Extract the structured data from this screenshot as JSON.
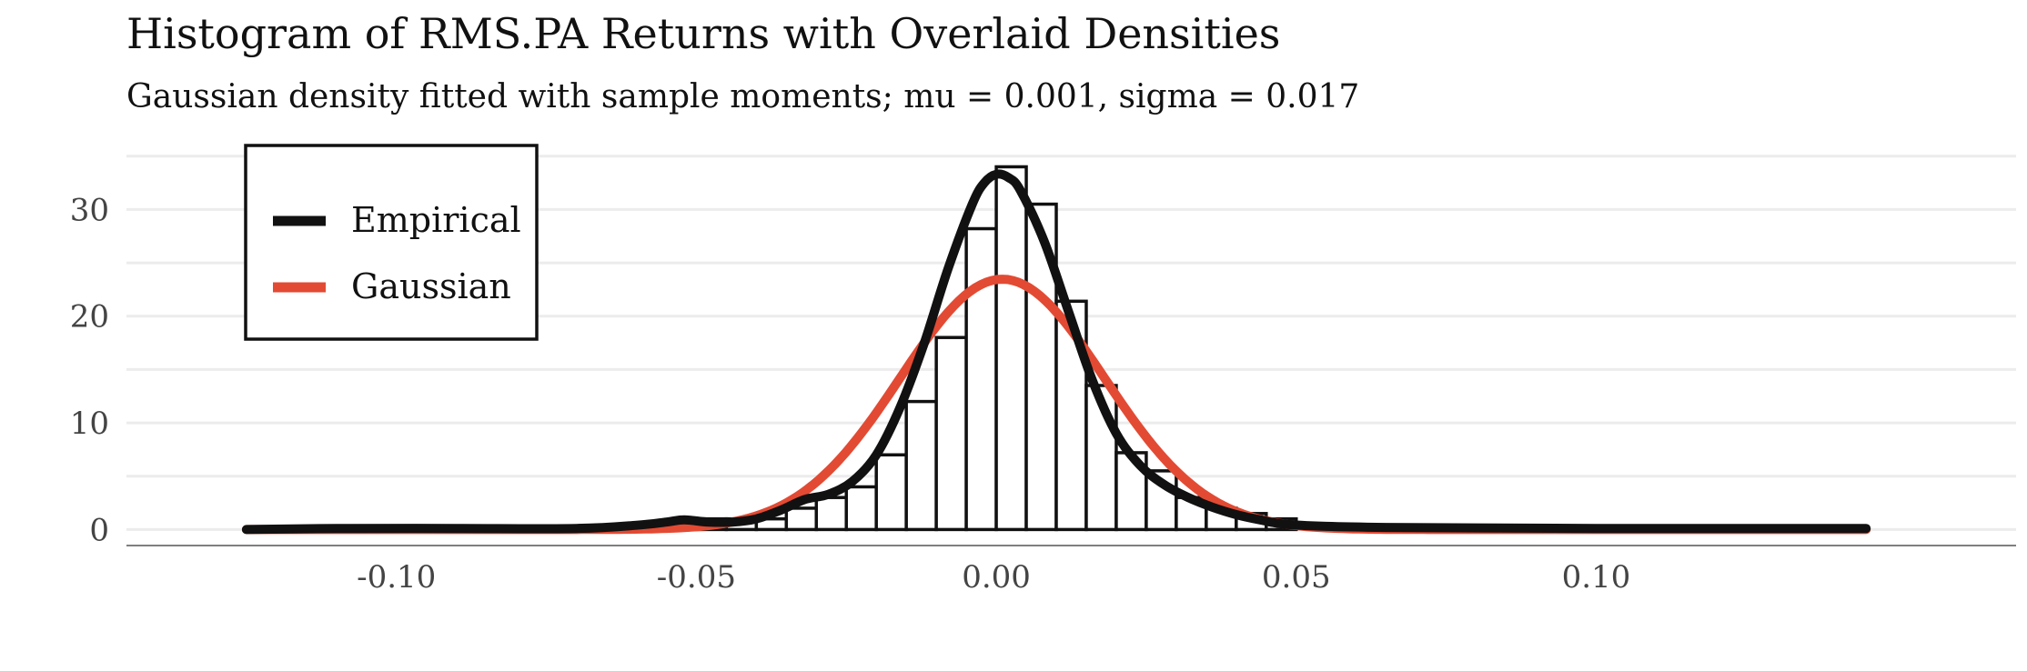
{
  "chart_data": {
    "type": "histogram",
    "title": "Histogram of RMS.PA Returns with Overlaid Densities",
    "subtitle": "Gaussian density fitted with sample moments; mu = 0.001, sigma = 0.017",
    "xlabel": "",
    "ylabel": "",
    "xlim": [
      -0.145,
      0.17
    ],
    "ylim": [
      -1.5,
      36
    ],
    "x_ticks": [
      -0.1,
      -0.05,
      0.0,
      0.05,
      0.1
    ],
    "x_tick_labels": [
      "-0.10",
      "-0.05",
      "0.00",
      "0.05",
      "0.10"
    ],
    "y_ticks": [
      0,
      10,
      20,
      30
    ],
    "y_tick_labels": [
      "0",
      "10",
      "20",
      "30"
    ],
    "grid": "horizontal",
    "bin_width": 0.005,
    "bins": [
      {
        "x0": -0.05,
        "x1": -0.045,
        "density": 1
      },
      {
        "x0": -0.045,
        "x1": -0.04,
        "density": 1
      },
      {
        "x0": -0.04,
        "x1": -0.035,
        "density": 1
      },
      {
        "x0": -0.035,
        "x1": -0.03,
        "density": 2
      },
      {
        "x0": -0.03,
        "x1": -0.025,
        "density": 3
      },
      {
        "x0": -0.025,
        "x1": -0.02,
        "density": 4
      },
      {
        "x0": -0.02,
        "x1": -0.015,
        "density": 7
      },
      {
        "x0": -0.015,
        "x1": -0.01,
        "density": 12
      },
      {
        "x0": -0.01,
        "x1": -0.005,
        "density": 18
      },
      {
        "x0": -0.005,
        "x1": 0.0,
        "density": 28.2
      },
      {
        "x0": 0.0,
        "x1": 0.005,
        "density": 34
      },
      {
        "x0": 0.005,
        "x1": 0.01,
        "density": 30.5
      },
      {
        "x0": 0.01,
        "x1": 0.015,
        "density": 21.4
      },
      {
        "x0": 0.015,
        "x1": 0.02,
        "density": 13.5
      },
      {
        "x0": 0.02,
        "x1": 0.025,
        "density": 7.2
      },
      {
        "x0": 0.025,
        "x1": 0.03,
        "density": 5.5
      },
      {
        "x0": 0.03,
        "x1": 0.035,
        "density": 3
      },
      {
        "x0": 0.035,
        "x1": 0.04,
        "density": 2
      },
      {
        "x0": 0.04,
        "x1": 0.045,
        "density": 1.5
      },
      {
        "x0": 0.045,
        "x1": 0.05,
        "density": 1
      }
    ],
    "series": [
      {
        "name": "Empirical",
        "color": "#111111",
        "x": [
          -0.125,
          -0.11,
          -0.09,
          -0.07,
          -0.06,
          -0.055,
          -0.052,
          -0.048,
          -0.044,
          -0.04,
          -0.036,
          -0.032,
          -0.028,
          -0.024,
          -0.02,
          -0.016,
          -0.012,
          -0.008,
          -0.004,
          -0.002,
          0.0,
          0.002,
          0.004,
          0.008,
          0.012,
          0.016,
          0.02,
          0.024,
          0.028,
          0.032,
          0.036,
          0.04,
          0.044,
          0.048,
          0.055,
          0.065,
          0.08,
          0.1,
          0.12,
          0.145
        ],
        "y": [
          0,
          0.1,
          0.1,
          0.1,
          0.4,
          0.7,
          0.9,
          0.7,
          0.7,
          1,
          1.8,
          2.8,
          3.3,
          4.5,
          7,
          11.5,
          17.5,
          24.5,
          30.5,
          32.5,
          33.3,
          33,
          31.8,
          27,
          20.5,
          14,
          9,
          6,
          4.2,
          3,
          2.1,
          1.4,
          0.9,
          0.5,
          0.3,
          0.2,
          0.15,
          0.1,
          0.1,
          0.1
        ]
      },
      {
        "name": "Gaussian",
        "color": "#E34A33",
        "mu": 0.001,
        "sigma": 0.017,
        "x_range": [
          -0.125,
          0.145
        ]
      }
    ],
    "legend": {
      "position": "top-left",
      "entries": [
        {
          "label": "Empirical",
          "color": "#111111"
        },
        {
          "label": "Gaussian",
          "color": "#E34A33"
        }
      ]
    }
  }
}
